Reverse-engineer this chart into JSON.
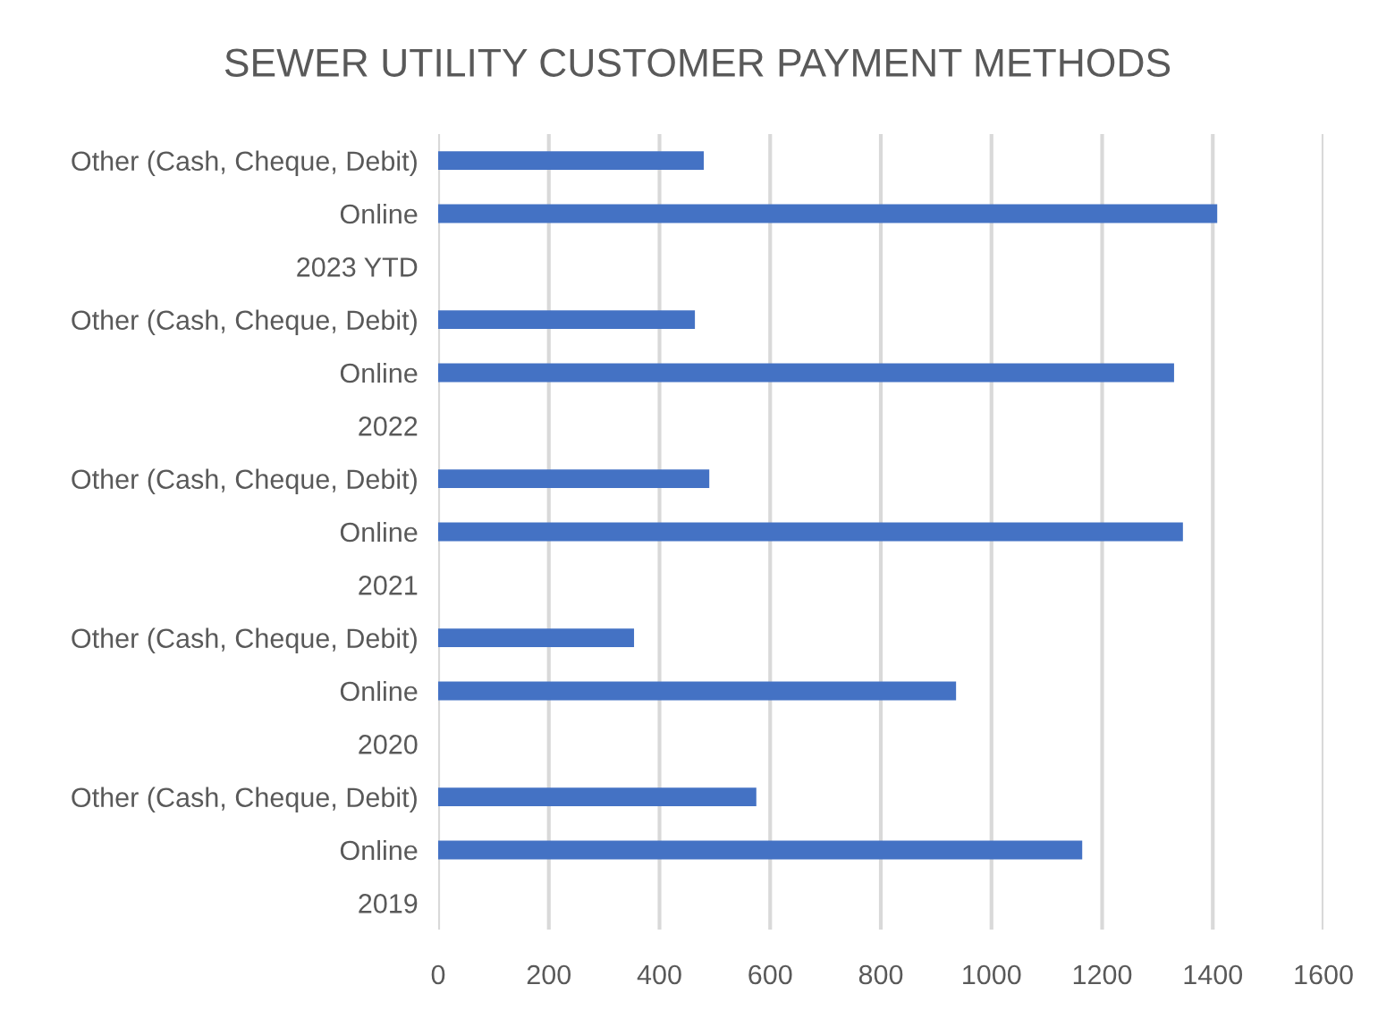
{
  "chart_data": {
    "type": "bar",
    "orientation": "horizontal",
    "title": "SEWER UTILITY CUSTOMER PAYMENT METHODS",
    "categories": [
      "Other (Cash, Cheque, Debit)",
      "Online",
      "2023 YTD",
      "Other (Cash, Cheque, Debit)",
      "Online",
      "2022",
      "Other (Cash, Cheque, Debit)",
      "Online",
      "2021",
      "Other (Cash, Cheque, Debit)",
      "Online",
      "2020",
      "Other (Cash, Cheque, Debit)",
      "Online",
      "2019"
    ],
    "values": [
      480,
      1408,
      null,
      464,
      1330,
      null,
      490,
      1346,
      null,
      354,
      936,
      null,
      575,
      1164,
      null
    ],
    "color": "#4472c4",
    "xlim": [
      0,
      1600
    ],
    "xticks": [
      0,
      200,
      400,
      600,
      800,
      1000,
      1200,
      1400,
      1600
    ],
    "grid": "x"
  }
}
